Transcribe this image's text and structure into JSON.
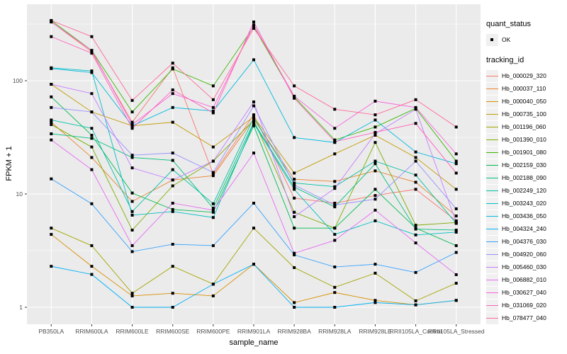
{
  "chart_data": {
    "type": "line",
    "title": "",
    "xlabel": "sample_name",
    "ylabel": "FPKM + 1",
    "x_axis": {
      "categories": [
        "PB350LA",
        "RRIM600LA",
        "RRIM600LE",
        "RRIM600SE",
        "RRIM600PE",
        "RRIM901LA",
        "RRIM928BA",
        "RRIM928LA",
        "RRIM928LE",
        "RRII105LA_Control",
        "RRII105LA_Stressed"
      ]
    },
    "y_axis": {
      "scale": "log10",
      "ticks": [
        1,
        10,
        100
      ],
      "tick_labels": [
        "1",
        "10",
        "100"
      ],
      "range": [
        0.75,
        470
      ]
    },
    "legend_position": "right",
    "legend": {
      "quant_status": {
        "title": "quant_status",
        "items": [
          {
            "label": "OK",
            "marker": "black-square"
          }
        ]
      },
      "tracking_id": {
        "title": "tracking_id"
      }
    },
    "style": {
      "panel_bg": "#EBEBEB",
      "grid_color": "#FFFFFF",
      "key_bg": "#F0F0F0",
      "point_color": "#000000",
      "axis_text_color": "#4D4D4D",
      "tick_color": "#333333"
    },
    "series": [
      {
        "name": "Hb_000029_320",
        "color": "#F8766D",
        "values": [
          330,
          180,
          43,
          130,
          15,
          50,
          9.2,
          8.3,
          9.7,
          11,
          5.8
        ]
      },
      {
        "name": "Hb_000037_110",
        "color": "#EA8331",
        "values": [
          43,
          21,
          8.6,
          13.3,
          14.5,
          46,
          13.5,
          12.9,
          16,
          12.7,
          6.4
        ]
      },
      {
        "name": "Hb_000040_050",
        "color": "#D89000",
        "values": [
          4.4,
          2.3,
          1.26,
          1.33,
          1.26,
          2.4,
          1.1,
          1.35,
          1.15,
          1.05,
          1.15
        ]
      },
      {
        "name": "Hb_000735_100",
        "color": "#C09B00",
        "values": [
          93,
          53,
          40,
          43,
          26,
          48,
          15.3,
          22.6,
          33,
          21,
          11
        ]
      },
      {
        "name": "Hb_001196_060",
        "color": "#A3A500",
        "values": [
          5.0,
          3.5,
          1.33,
          2.3,
          1.6,
          5.0,
          2.24,
          1.5,
          2.0,
          1.14,
          1.63
        ]
      },
      {
        "name": "Hb_001390_010",
        "color": "#7CAE00",
        "values": [
          41,
          26,
          4.8,
          11.8,
          19.5,
          45,
          6.9,
          5.0,
          28.5,
          5.3,
          5.6
        ]
      },
      {
        "name": "Hb_001901_080",
        "color": "#39B600",
        "values": [
          340,
          185,
          53,
          127,
          90,
          300,
          72,
          30,
          39,
          57,
          19.5
        ]
      },
      {
        "name": "Hb_002159_030",
        "color": "#00BB4E",
        "values": [
          72,
          33,
          10.2,
          7.3,
          6.9,
          40,
          5.0,
          5.0,
          11,
          5.0,
          3.5
        ]
      },
      {
        "name": "Hb_002188_090",
        "color": "#00BF7D",
        "values": [
          34,
          31,
          21,
          19.8,
          7.5,
          43,
          11.5,
          7.7,
          18.5,
          4.9,
          4.8
        ]
      },
      {
        "name": "Hb_002249_120",
        "color": "#00C1A3",
        "values": [
          45,
          38,
          7.0,
          16.4,
          8.2,
          47,
          12.5,
          11.6,
          19.5,
          14.7,
          5.5
        ]
      },
      {
        "name": "Hb_003243_020",
        "color": "#00BFC4",
        "values": [
          130,
          122,
          6.5,
          7.0,
          6.2,
          42,
          11,
          4.4,
          5.8,
          4.35,
          4.6
        ]
      },
      {
        "name": "Hb_003436_050",
        "color": "#00BAE0",
        "values": [
          128,
          118,
          40,
          58,
          54,
          153,
          31.5,
          28.5,
          45,
          23.5,
          18.5
        ]
      },
      {
        "name": "Hb_004324_240",
        "color": "#00B0F6",
        "values": [
          2.3,
          1.95,
          1.0,
          1.0,
          1.6,
          2.4,
          1.0,
          1.0,
          1.1,
          1.05,
          1.15
        ]
      },
      {
        "name": "Hb_004376_030",
        "color": "#35A2FF",
        "values": [
          13.6,
          8.2,
          3.1,
          3.6,
          3.5,
          8.3,
          2.9,
          2.27,
          2.4,
          2.03,
          3.05
        ]
      },
      {
        "name": "Hb_004920_060",
        "color": "#9590FF",
        "values": [
          58,
          53,
          22,
          23,
          15.5,
          60,
          12,
          8.0,
          9.0,
          19.5,
          7.4
        ]
      },
      {
        "name": "Hb_005460_030",
        "color": "#C77CFF",
        "values": [
          93,
          77,
          17,
          13.3,
          19.5,
          65,
          6.3,
          11.2,
          34,
          56,
          5.6
        ]
      },
      {
        "name": "Hb_006882_010",
        "color": "#E76BF3",
        "values": [
          30,
          16.4,
          3.5,
          8.3,
          7.2,
          23,
          3.0,
          3.9,
          7.2,
          3.7,
          1.94
        ]
      },
      {
        "name": "Hb_030627_040",
        "color": "#FA62DB",
        "values": [
          330,
          185,
          41,
          77,
          58,
          310,
          73,
          38,
          66,
          58,
          22.6
        ]
      },
      {
        "name": "Hb_031069_020",
        "color": "#FF62BC",
        "values": [
          245,
          175,
          38,
          83,
          52,
          330,
          70,
          29,
          35,
          42,
          15.3
        ]
      },
      {
        "name": "Hb_078477_040",
        "color": "#FF6A98",
        "values": [
          340,
          245,
          67,
          143,
          68,
          290,
          90,
          56,
          50,
          68,
          39
        ]
      }
    ]
  }
}
